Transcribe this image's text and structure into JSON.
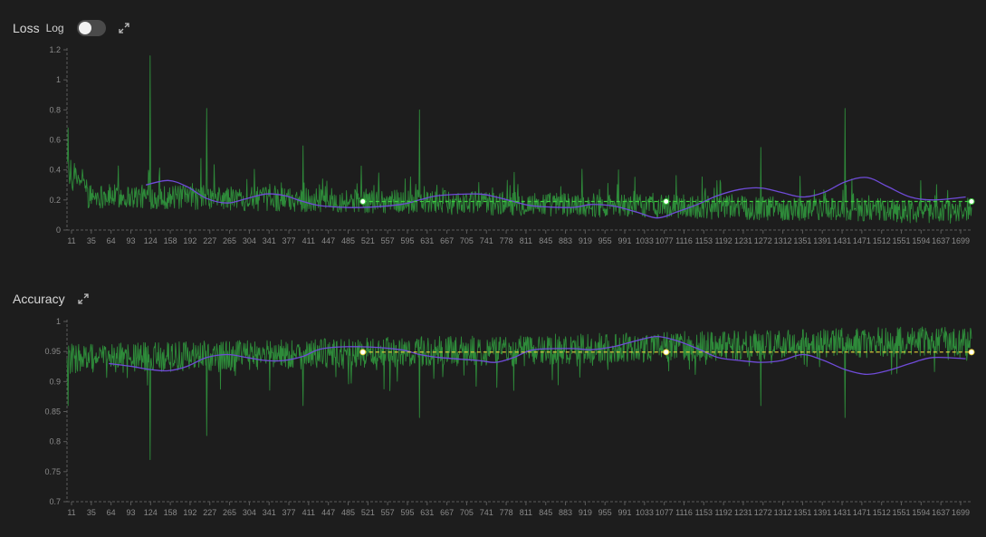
{
  "colors": {
    "background": "#1d1d1d",
    "raw_series": "#2e8b3a",
    "smooth_series": "#6f4bd8",
    "loss_reference": "#3fcf3f",
    "accuracy_reference": "#e8d23a",
    "axis": "#5a5a5a"
  },
  "loss_panel": {
    "title": "Loss",
    "log_label": "Log",
    "log_toggle_on": false,
    "expand_icon": "expand-icon"
  },
  "accuracy_panel": {
    "title": "Accuracy",
    "expand_icon": "expand-icon"
  },
  "chart_data": [
    {
      "type": "line",
      "title": "Loss",
      "x_range": [
        1,
        1710
      ],
      "ylim": [
        0,
        1.2
      ],
      "yticks": [
        "0",
        "0.2",
        "0.4",
        "0.6",
        "0.8",
        "1",
        "1.2"
      ],
      "xticks": [
        "11",
        "35",
        "64",
        "93",
        "124",
        "158",
        "192",
        "227",
        "265",
        "304",
        "341",
        "377",
        "411",
        "447",
        "485",
        "521",
        "557",
        "595",
        "631",
        "667",
        "705",
        "741",
        "778",
        "811",
        "845",
        "883",
        "919",
        "955",
        "991",
        "1033",
        "1077",
        "1116",
        "1153",
        "1192",
        "1231",
        "1272",
        "1312",
        "1351",
        "1391",
        "1431",
        "1471",
        "1512",
        "1551",
        "1594",
        "1637",
        "1699"
      ],
      "grid": false,
      "series": [
        {
          "kind": "raw",
          "value_shape": "noisy per-step values, base ~0.22 early falling to ~0.12 late, spikes up to ~1.16",
          "spikes": [
            [
              3,
              0.68
            ],
            [
              158,
              1.16
            ],
            [
              265,
              0.81
            ],
            [
              447,
              0.56
            ],
            [
              667,
              0.8
            ],
            [
              1312,
              0.55
            ],
            [
              1471,
              0.81
            ]
          ]
        },
        {
          "kind": "smoothed",
          "points": [
            [
              150,
              0.3
            ],
            [
              192,
              0.33
            ],
            [
              227,
              0.29
            ],
            [
              265,
              0.21
            ],
            [
              304,
              0.18
            ],
            [
              341,
              0.21
            ],
            [
              377,
              0.24
            ],
            [
              411,
              0.23
            ],
            [
              447,
              0.19
            ],
            [
              485,
              0.16
            ],
            [
              557,
              0.15
            ],
            [
              631,
              0.17
            ],
            [
              667,
              0.2
            ],
            [
              705,
              0.23
            ],
            [
              778,
              0.24
            ],
            [
              811,
              0.22
            ],
            [
              845,
              0.19
            ],
            [
              883,
              0.16
            ],
            [
              955,
              0.15
            ],
            [
              991,
              0.17
            ],
            [
              1033,
              0.16
            ],
            [
              1077,
              0.12
            ],
            [
              1116,
              0.08
            ],
            [
              1153,
              0.12
            ],
            [
              1192,
              0.17
            ],
            [
              1231,
              0.23
            ],
            [
              1272,
              0.27
            ],
            [
              1312,
              0.28
            ],
            [
              1351,
              0.25
            ],
            [
              1391,
              0.22
            ],
            [
              1431,
              0.25
            ],
            [
              1471,
              0.32
            ],
            [
              1512,
              0.35
            ],
            [
              1551,
              0.29
            ],
            [
              1594,
              0.22
            ],
            [
              1637,
              0.2
            ],
            [
              1699,
              0.22
            ]
          ]
        },
        {
          "kind": "reference",
          "y": 0.19,
          "x_start": 560,
          "markers": [
            560,
            1133,
            1710
          ]
        }
      ]
    },
    {
      "type": "line",
      "title": "Accuracy",
      "x_range": [
        1,
        1710
      ],
      "ylim": [
        0.7,
        1.0
      ],
      "yticks": [
        "0.7",
        "0.75",
        "0.8",
        "0.85",
        "0.9",
        "0.95",
        "1"
      ],
      "xticks": [
        "11",
        "35",
        "64",
        "93",
        "124",
        "158",
        "192",
        "227",
        "265",
        "304",
        "341",
        "377",
        "411",
        "447",
        "485",
        "521",
        "557",
        "595",
        "631",
        "667",
        "705",
        "741",
        "778",
        "811",
        "845",
        "883",
        "919",
        "955",
        "991",
        "1033",
        "1077",
        "1116",
        "1153",
        "1192",
        "1231",
        "1272",
        "1312",
        "1351",
        "1391",
        "1431",
        "1471",
        "1512",
        "1551",
        "1594",
        "1637",
        "1699"
      ],
      "grid": false,
      "series": [
        {
          "kind": "raw",
          "value_shape": "noisy per-step values, base ~0.94 early rising to ~0.97 late, dips down to ~0.77",
          "dips": [
            [
              3,
              0.86
            ],
            [
              158,
              0.77
            ],
            [
              265,
              0.81
            ],
            [
              447,
              0.86
            ],
            [
              667,
              0.84
            ],
            [
              1312,
              0.86
            ],
            [
              1471,
              0.84
            ]
          ]
        },
        {
          "kind": "smoothed",
          "points": [
            [
              80,
              0.93
            ],
            [
              124,
              0.925
            ],
            [
              158,
              0.92
            ],
            [
              192,
              0.918
            ],
            [
              227,
              0.925
            ],
            [
              265,
              0.94
            ],
            [
              304,
              0.945
            ],
            [
              341,
              0.94
            ],
            [
              377,
              0.935
            ],
            [
              411,
              0.935
            ],
            [
              447,
              0.942
            ],
            [
              485,
              0.955
            ],
            [
              557,
              0.958
            ],
            [
              631,
              0.953
            ],
            [
              667,
              0.945
            ],
            [
              705,
              0.94
            ],
            [
              778,
              0.935
            ],
            [
              811,
              0.932
            ],
            [
              845,
              0.94
            ],
            [
              883,
              0.953
            ],
            [
              955,
              0.955
            ],
            [
              991,
              0.953
            ],
            [
              1033,
              0.958
            ],
            [
              1077,
              0.968
            ],
            [
              1116,
              0.975
            ],
            [
              1153,
              0.968
            ],
            [
              1192,
              0.955
            ],
            [
              1231,
              0.94
            ],
            [
              1272,
              0.935
            ],
            [
              1312,
              0.932
            ],
            [
              1351,
              0.935
            ],
            [
              1391,
              0.945
            ],
            [
              1431,
              0.935
            ],
            [
              1471,
              0.92
            ],
            [
              1512,
              0.912
            ],
            [
              1551,
              0.918
            ],
            [
              1594,
              0.93
            ],
            [
              1637,
              0.94
            ],
            [
              1699,
              0.938
            ]
          ]
        },
        {
          "kind": "reference",
          "y": 0.949,
          "x_start": 560,
          "markers": [
            560,
            1133,
            1710
          ]
        }
      ]
    }
  ]
}
